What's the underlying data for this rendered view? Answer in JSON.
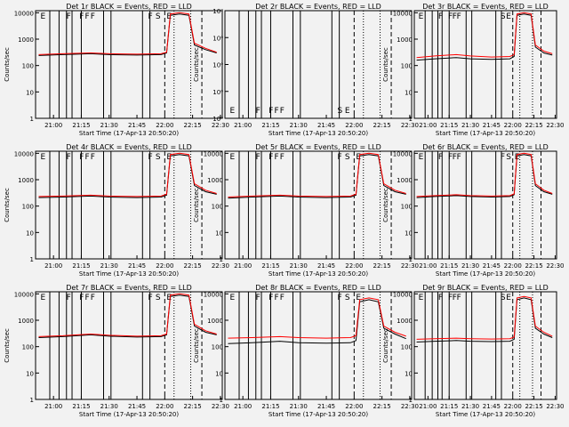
{
  "figure": {
    "background": "#f2f2f2",
    "colors": {
      "events": "#000000",
      "lld": "#ff0000",
      "axes": "#000000"
    },
    "x_ticks": [
      "21:00",
      "21:15",
      "21:30",
      "21:45",
      "22:00",
      "22:15",
      "22:30"
    ],
    "x_label": "Start Time (17-Apr-13 20:50:20)",
    "y_label": "Counts/sec"
  },
  "chart_data": [
    {
      "type": "line",
      "title": "Det 1r BLACK = Events, RED = LLD",
      "xlim": [
        "20:50:20",
        "22:31"
      ],
      "y_scale": "log",
      "ylim": [
        1,
        12000
      ],
      "y_ticks": [
        "1",
        "10",
        "100",
        "1000",
        "10000"
      ],
      "markers": [
        "E",
        "F",
        "F",
        "F",
        "F",
        "F",
        "S",
        "E"
      ],
      "series": [
        {
          "name": "Events",
          "x": [
            "20:52",
            "21:05",
            "21:20",
            "21:30",
            "21:45",
            "21:58",
            "22:01",
            "22:03",
            "22:08",
            "22:13",
            "22:16",
            "22:22",
            "22:28"
          ],
          "y": [
            240,
            260,
            280,
            260,
            250,
            260,
            300,
            8000,
            9000,
            8000,
            600,
            400,
            300
          ]
        },
        {
          "name": "LLD",
          "x": [
            "20:52",
            "21:05",
            "21:20",
            "21:30",
            "21:45",
            "21:58",
            "22:01",
            "22:03",
            "22:08",
            "22:13",
            "22:16",
            "22:22",
            "22:28"
          ],
          "y": [
            260,
            280,
            300,
            280,
            270,
            280,
            320,
            9000,
            10000,
            9000,
            700,
            450,
            320
          ]
        }
      ]
    },
    {
      "type": "line",
      "title": "Det 2r BLACK = Events, RED = LLD",
      "xlim": [
        "20:50:20",
        "22:31"
      ],
      "y_scale": "log",
      "ylim": [
        0.9,
        1.1
      ],
      "y_ticks": [
        "10⁰",
        "10⁰",
        "10⁰",
        "10⁰",
        "10⁰"
      ],
      "markers": [
        "E",
        "F",
        "F",
        "F",
        "F",
        "S",
        "E"
      ],
      "series": []
    },
    {
      "type": "line",
      "title": "Det 3r BLACK = Events, RED = LLD",
      "xlim": [
        "20:50:20",
        "22:31"
      ],
      "y_scale": "log",
      "ylim": [
        1,
        12000
      ],
      "y_ticks": [
        "1",
        "10",
        "100",
        "1000",
        "10000"
      ],
      "markers": [
        "E",
        "F",
        "F",
        "F",
        "F",
        "S",
        "E"
      ],
      "series": [
        {
          "name": "Events",
          "x": [
            "20:52",
            "21:05",
            "21:20",
            "21:30",
            "21:45",
            "21:58",
            "22:01",
            "22:03",
            "22:08",
            "22:13",
            "22:16",
            "22:22",
            "22:28"
          ],
          "y": [
            160,
            180,
            200,
            180,
            170,
            180,
            220,
            8000,
            9000,
            8000,
            500,
            300,
            250
          ]
        },
        {
          "name": "LLD",
          "x": [
            "20:52",
            "21:05",
            "21:20",
            "21:30",
            "21:45",
            "21:58",
            "22:01",
            "22:03",
            "22:08",
            "22:13",
            "22:16",
            "22:22",
            "22:28"
          ],
          "y": [
            200,
            230,
            260,
            230,
            210,
            220,
            260,
            9000,
            10000,
            9000,
            600,
            350,
            280
          ]
        }
      ]
    },
    {
      "type": "line",
      "title": "Det 4r BLACK = Events, RED = LLD",
      "xlim": [
        "20:50:20",
        "22:31"
      ],
      "y_scale": "log",
      "ylim": [
        1,
        12000
      ],
      "y_ticks": [
        "1",
        "10",
        "100",
        "1000",
        "10000"
      ],
      "markers": [
        "E",
        "F",
        "F",
        "F",
        "F",
        "F",
        "S",
        "E"
      ],
      "series": [
        {
          "name": "Events",
          "x": [
            "20:52",
            "21:05",
            "21:20",
            "21:30",
            "21:45",
            "21:58",
            "22:01",
            "22:03",
            "22:08",
            "22:13",
            "22:16",
            "22:22",
            "22:28"
          ],
          "y": [
            210,
            220,
            240,
            220,
            210,
            220,
            260,
            8000,
            9000,
            8000,
            600,
            350,
            280
          ]
        },
        {
          "name": "LLD",
          "x": [
            "20:52",
            "21:05",
            "21:20",
            "21:30",
            "21:45",
            "21:58",
            "22:01",
            "22:03",
            "22:08",
            "22:13",
            "22:16",
            "22:22",
            "22:28"
          ],
          "y": [
            230,
            240,
            260,
            240,
            230,
            240,
            280,
            9000,
            10000,
            9000,
            700,
            400,
            300
          ]
        }
      ]
    },
    {
      "type": "line",
      "title": "Det 5r BLACK = Events, RED = LLD",
      "xlim": [
        "20:50:20",
        "22:31"
      ],
      "y_scale": "log",
      "ylim": [
        1,
        12000
      ],
      "y_ticks": [
        "1",
        "10",
        "100",
        "1000",
        "10000"
      ],
      "markers": [
        "E",
        "F",
        "F",
        "F",
        "F",
        "F",
        "S",
        "E"
      ],
      "series": [
        {
          "name": "Events",
          "x": [
            "20:52",
            "21:05",
            "21:20",
            "21:30",
            "21:45",
            "21:58",
            "22:01",
            "22:03",
            "22:08",
            "22:13",
            "22:16",
            "22:22",
            "22:28"
          ],
          "y": [
            200,
            220,
            240,
            220,
            210,
            220,
            260,
            8000,
            9000,
            8000,
            600,
            350,
            280
          ]
        },
        {
          "name": "LLD",
          "x": [
            "20:52",
            "21:05",
            "21:20",
            "21:30",
            "21:45",
            "21:58",
            "22:01",
            "22:03",
            "22:08",
            "22:13",
            "22:16",
            "22:22",
            "22:28"
          ],
          "y": [
            220,
            240,
            260,
            240,
            230,
            240,
            280,
            9000,
            10000,
            9000,
            700,
            400,
            300
          ]
        }
      ]
    },
    {
      "type": "line",
      "title": "Det 6r BLACK = Events, RED = LLD",
      "xlim": [
        "20:50:20",
        "22:31"
      ],
      "y_scale": "log",
      "ylim": [
        1,
        12000
      ],
      "y_ticks": [
        "1",
        "10",
        "100",
        "1000",
        "10000"
      ],
      "markers": [
        "E",
        "F",
        "F",
        "F",
        "F",
        "F",
        "S",
        "E"
      ],
      "series": [
        {
          "name": "Events",
          "x": [
            "20:52",
            "21:05",
            "21:20",
            "21:30",
            "21:45",
            "21:58",
            "22:01",
            "22:03",
            "22:08",
            "22:13",
            "22:16",
            "22:22",
            "22:28"
          ],
          "y": [
            210,
            230,
            250,
            230,
            220,
            230,
            270,
            8000,
            9000,
            8000,
            600,
            350,
            280
          ]
        },
        {
          "name": "LLD",
          "x": [
            "20:52",
            "21:05",
            "21:20",
            "21:30",
            "21:45",
            "21:58",
            "22:01",
            "22:03",
            "22:08",
            "22:13",
            "22:16",
            "22:22",
            "22:28"
          ],
          "y": [
            230,
            250,
            270,
            250,
            240,
            250,
            290,
            9000,
            10000,
            9000,
            700,
            400,
            300
          ]
        }
      ]
    },
    {
      "type": "line",
      "title": "Det 7r BLACK = Events, RED = LLD",
      "xlim": [
        "20:50:20",
        "22:31"
      ],
      "y_scale": "log",
      "ylim": [
        1,
        12000
      ],
      "y_ticks": [
        "1",
        "10",
        "100",
        "1000",
        "10000"
      ],
      "markers": [
        "E",
        "F",
        "F",
        "F",
        "F",
        "F",
        "S",
        "E"
      ],
      "series": [
        {
          "name": "Events",
          "x": [
            "20:52",
            "21:05",
            "21:20",
            "21:30",
            "21:45",
            "21:58",
            "22:01",
            "22:03",
            "22:08",
            "22:13",
            "22:16",
            "22:22",
            "22:28"
          ],
          "y": [
            220,
            240,
            280,
            250,
            230,
            240,
            280,
            8000,
            9000,
            8000,
            600,
            350,
            280
          ]
        },
        {
          "name": "LLD",
          "x": [
            "20:52",
            "21:05",
            "21:20",
            "21:30",
            "21:45",
            "21:58",
            "22:01",
            "22:03",
            "22:08",
            "22:13",
            "22:16",
            "22:22",
            "22:28"
          ],
          "y": [
            240,
            260,
            300,
            270,
            250,
            260,
            300,
            9000,
            10000,
            9000,
            700,
            400,
            300
          ]
        }
      ]
    },
    {
      "type": "line",
      "title": "Det 8r BLACK = Events, RED = LLD",
      "xlim": [
        "20:50:20",
        "22:31"
      ],
      "y_scale": "log",
      "ylim": [
        1,
        12000
      ],
      "y_ticks": [
        "1",
        "10",
        "100",
        "1000",
        "10000"
      ],
      "markers": [
        "E",
        "F",
        "F",
        "F",
        "F",
        "F",
        "S",
        "E"
      ],
      "series": [
        {
          "name": "Events",
          "x": [
            "20:52",
            "21:05",
            "21:20",
            "21:30",
            "21:45",
            "21:58",
            "22:01",
            "22:03",
            "22:08",
            "22:13",
            "22:16",
            "22:22",
            "22:28"
          ],
          "y": [
            130,
            140,
            160,
            140,
            135,
            140,
            170,
            5000,
            6000,
            5000,
            500,
            300,
            200
          ]
        },
        {
          "name": "LLD",
          "x": [
            "20:52",
            "21:05",
            "21:20",
            "21:30",
            "21:45",
            "21:58",
            "22:01",
            "22:03",
            "22:08",
            "22:13",
            "22:16",
            "22:22",
            "22:28"
          ],
          "y": [
            210,
            220,
            240,
            220,
            210,
            220,
            260,
            6000,
            7000,
            6000,
            600,
            350,
            250
          ]
        }
      ]
    },
    {
      "type": "line",
      "title": "Det 9r BLACK = Events, RED = LLD",
      "xlim": [
        "20:50:20",
        "22:31"
      ],
      "y_scale": "log",
      "ylim": [
        1,
        12000
      ],
      "y_ticks": [
        "1",
        "10",
        "100",
        "1000",
        "10000"
      ],
      "markers": [
        "E",
        "F",
        "F",
        "F",
        "F",
        "S",
        "E"
      ],
      "series": [
        {
          "name": "Events",
          "x": [
            "20:52",
            "21:05",
            "21:20",
            "21:30",
            "21:45",
            "21:58",
            "22:01",
            "22:03",
            "22:08",
            "22:13",
            "22:16",
            "22:22",
            "22:28"
          ],
          "y": [
            150,
            160,
            170,
            160,
            155,
            160,
            190,
            6000,
            7000,
            6000,
            500,
            300,
            220
          ]
        },
        {
          "name": "LLD",
          "x": [
            "20:52",
            "21:05",
            "21:20",
            "21:30",
            "21:45",
            "21:58",
            "22:01",
            "22:03",
            "22:08",
            "22:13",
            "22:16",
            "22:22",
            "22:28"
          ],
          "y": [
            190,
            200,
            210,
            200,
            195,
            200,
            230,
            7000,
            8000,
            7000,
            600,
            350,
            250
          ]
        }
      ]
    }
  ]
}
